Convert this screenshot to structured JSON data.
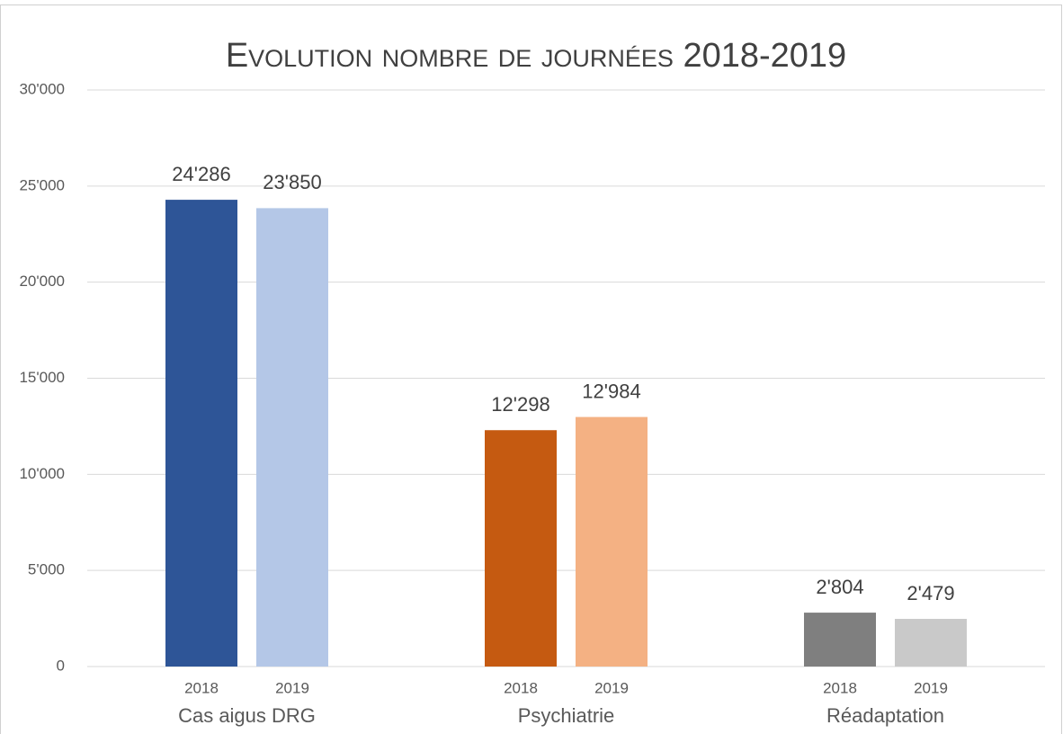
{
  "chart_data": {
    "type": "bar",
    "title": "Evolution nombre de journées 2018-2019",
    "categories": [
      "Cas aigus DRG",
      "Psychiatrie",
      "Réadaptation"
    ],
    "series": [
      {
        "name": "2018",
        "colors": [
          "#2e5597",
          "#c55a11",
          "#7f7f7f"
        ],
        "values": [
          24286,
          12298,
          2804
        ],
        "value_labels": [
          "24'286",
          "12'298",
          "2'804"
        ]
      },
      {
        "name": "2019",
        "colors": [
          "#b4c7e7",
          "#f4b183",
          "#c9c9c9"
        ],
        "values": [
          23850,
          12984,
          2479
        ],
        "value_labels": [
          "23'850",
          "12'984",
          "2'479"
        ]
      }
    ],
    "ylim": [
      0,
      30000
    ],
    "yticks": [
      0,
      {
        "value": 5000,
        "label": "5'000"
      },
      {
        "value": 10000,
        "label": "10'000"
      },
      {
        "value": 15000,
        "label": "15'000"
      },
      {
        "value": 20000,
        "label": "20'000"
      },
      {
        "value": 25000,
        "label": "25'000"
      },
      {
        "value": 30000,
        "label": "30'000"
      }
    ],
    "grid": true
  }
}
